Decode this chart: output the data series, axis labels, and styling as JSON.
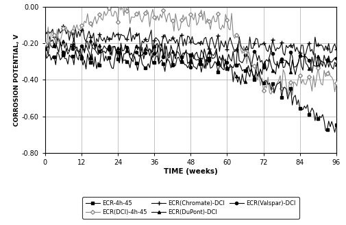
{
  "title": "",
  "xlabel": "TIME (weeks)",
  "ylabel": "CORROSION POTENTIAL, V",
  "xlim": [
    0,
    96
  ],
  "ylim": [
    -0.8,
    0.0
  ],
  "xticks": [
    0,
    12,
    24,
    36,
    48,
    60,
    72,
    84,
    96
  ],
  "yticks": [
    0.0,
    -0.2,
    -0.4,
    -0.6,
    -0.8
  ],
  "background_color": "#ffffff",
  "legend_ncol": 3,
  "series": {
    "ECR-4h-45": {
      "label": "ECR-4h-45",
      "marker": "s",
      "color": "#000000",
      "lw": 0.8,
      "ms": 3,
      "mfc": "#000000"
    },
    "ECR(DCI)-4h-45": {
      "label": "ECR(DCI)-4h-45",
      "marker": "D",
      "color": "#888888",
      "lw": 0.8,
      "ms": 3,
      "mfc": "#ffffff"
    },
    "ECR(Chromate)-DCI": {
      "label": "ECR(Chromate)-DCI",
      "marker": "+",
      "color": "#000000",
      "lw": 0.8,
      "ms": 4,
      "mfc": "#000000"
    },
    "ECR(DuPont)-DCI": {
      "label": "ECR(DuPont)-DCI",
      "marker": "^",
      "color": "#000000",
      "lw": 0.8,
      "ms": 3,
      "mfc": "#000000"
    },
    "ECR(Valspar)-DCI": {
      "label": "ECR(Valspar)-DCI",
      "marker": "o",
      "color": "#000000",
      "lw": 0.8,
      "ms": 3,
      "mfc": "#000000"
    }
  }
}
